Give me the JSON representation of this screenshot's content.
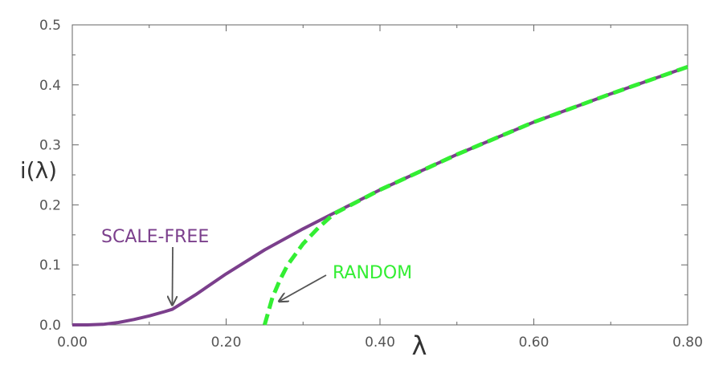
{
  "chart_data": {
    "type": "line",
    "title": "",
    "xlabel": "λ",
    "ylabel": "i(λ)",
    "xlim": [
      0,
      0.8
    ],
    "ylim": [
      0,
      0.5
    ],
    "grid": false,
    "x_ticks": [
      0.0,
      0.2,
      0.4,
      0.6,
      0.8
    ],
    "x_tick_labels": [
      "0.00",
      "0.20",
      "0.40",
      "0.60",
      "0.80"
    ],
    "y_ticks": [
      0.0,
      0.1,
      0.2,
      0.3,
      0.4,
      0.5
    ],
    "y_tick_labels": [
      "0.0",
      "0.1",
      "0.2",
      "0.3",
      "0.4",
      "0.5"
    ],
    "series": [
      {
        "color": "#7b3f8c",
        "style": "solid",
        "x": [
          0.0,
          0.02,
          0.04,
          0.06,
          0.08,
          0.1,
          0.12,
          0.13,
          0.16,
          0.2,
          0.25,
          0.3,
          0.335,
          0.4,
          0.5,
          0.6,
          0.7,
          0.8
        ],
        "y": [
          0.0,
          0.0,
          0.001,
          0.004,
          0.009,
          0.015,
          0.022,
          0.026,
          0.05,
          0.085,
          0.125,
          0.16,
          0.183,
          0.225,
          0.284,
          0.338,
          0.385,
          0.43
        ]
      },
      {
        "color": "#33ee33",
        "style": "dashed",
        "x": [
          0.25,
          0.26,
          0.27,
          0.28,
          0.3,
          0.32,
          0.34,
          0.4,
          0.5,
          0.6,
          0.7,
          0.8
        ],
        "y": [
          0.0,
          0.045,
          0.075,
          0.1,
          0.135,
          0.162,
          0.185,
          0.225,
          0.284,
          0.338,
          0.385,
          0.43
        ]
      }
    ],
    "annotations": [
      {
        "text": "SCALE-FREE",
        "color": "#7b3f8c",
        "arrow_to": [
          0.13,
          0.035
        ]
      },
      {
        "text": "RANDOM",
        "color": "#33ee33",
        "arrow_to": [
          0.27,
          0.04
        ]
      }
    ]
  }
}
